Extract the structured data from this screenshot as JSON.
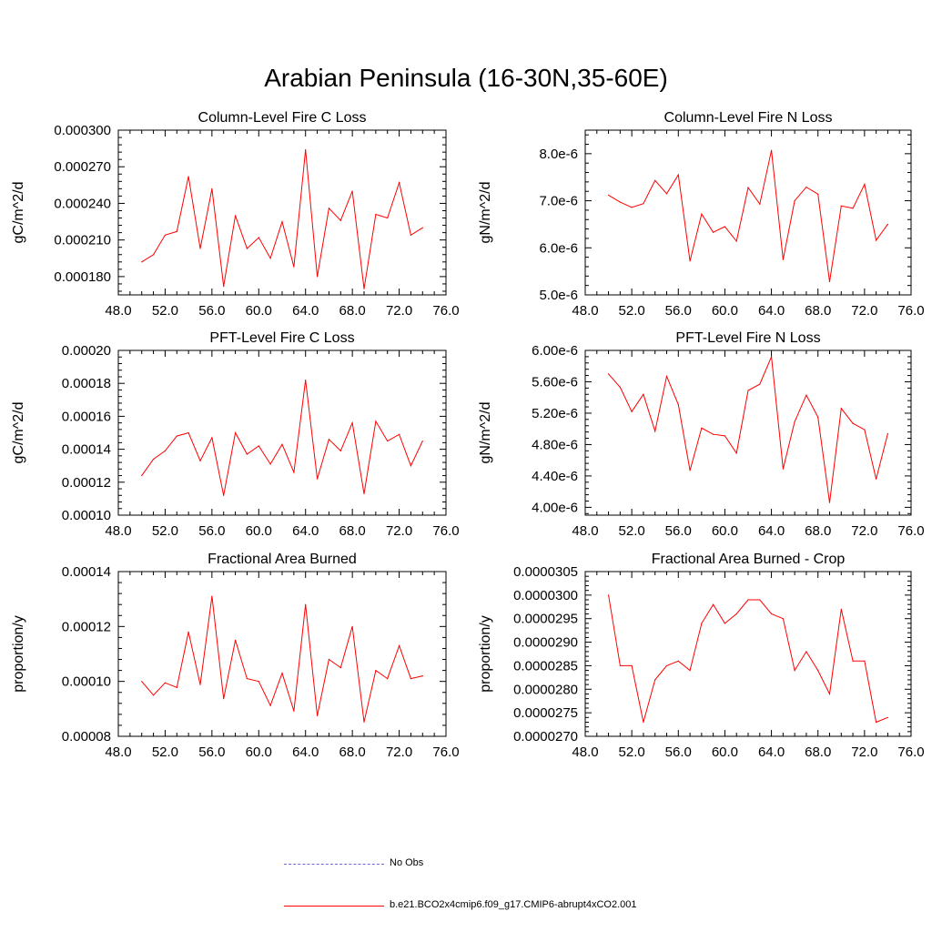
{
  "page": {
    "title": "Arabian Peninsula (16-30N,35-60E)"
  },
  "colors": {
    "model": "#ff0000",
    "obs": "#6a6ad8",
    "axis": "#000000"
  },
  "legend": {
    "obs_label": "No Obs",
    "model_label": "b.e21.BCO2x4cmip6.f09_g17.CMIP6-abrupt4xCO2.001"
  },
  "chart_data": [
    {
      "type": "line",
      "title": "Column-Level Fire C Loss",
      "ylabel": "gC/m^2/d",
      "xlabel": "",
      "xlim": [
        48,
        76
      ],
      "xticks": [
        48,
        52,
        56,
        60,
        64,
        68,
        72,
        76
      ],
      "xtick_labels": [
        "48.0",
        "52.0",
        "56.0",
        "60.0",
        "64.0",
        "68.0",
        "72.0",
        "76.0"
      ],
      "ylim": [
        0.000165,
        0.0003
      ],
      "yticks": [
        0.00018,
        0.00021,
        0.00024,
        0.00027,
        0.0003
      ],
      "ytick_labels": [
        "0.000180",
        "0.000210",
        "0.000240",
        "0.000270",
        "0.000300"
      ],
      "x": [
        50,
        51,
        52,
        53,
        54,
        55,
        56,
        57,
        58,
        59,
        60,
        61,
        62,
        63,
        64,
        65,
        66,
        67,
        68,
        69,
        70,
        71,
        72,
        73,
        74
      ],
      "series": [
        {
          "name": "b.e21.BCO2x4cmip6.f09_g17.CMIP6-abrupt4xCO2.001",
          "values": [
            0.000192,
            0.000198,
            0.000214,
            0.000217,
            0.000262,
            0.000203,
            0.000252,
            0.000172,
            0.00023,
            0.000203,
            0.000212,
            0.000195,
            0.000225,
            0.000188,
            0.000284,
            0.00018,
            0.000236,
            0.000226,
            0.00025,
            0.00017,
            0.000231,
            0.000228,
            0.000257,
            0.000214,
            0.00022
          ]
        }
      ]
    },
    {
      "type": "line",
      "title": "Column-Level Fire N Loss",
      "ylabel": "gN/m^2/d",
      "xlabel": "",
      "xlim": [
        48,
        76
      ],
      "xticks": [
        48,
        52,
        56,
        60,
        64,
        68,
        72,
        76
      ],
      "xtick_labels": [
        "48.0",
        "52.0",
        "56.0",
        "60.0",
        "64.0",
        "68.0",
        "72.0",
        "76.0"
      ],
      "ylim": [
        5e-06,
        8.5e-06
      ],
      "yticks": [
        5e-06,
        6e-06,
        7e-06,
        8e-06
      ],
      "ytick_labels": [
        "5.0e-6",
        "6.0e-6",
        "7.0e-6",
        "8.0e-6"
      ],
      "x": [
        50,
        51,
        52,
        53,
        54,
        55,
        56,
        57,
        58,
        59,
        60,
        61,
        62,
        63,
        64,
        65,
        66,
        67,
        68,
        69,
        70,
        71,
        72,
        73,
        74
      ],
      "series": [
        {
          "name": "b.e21.BCO2x4cmip6.f09_g17.CMIP6-abrupt4xCO2.001",
          "values": [
            7.12e-06,
            6.97e-06,
            6.86e-06,
            6.94e-06,
            7.43e-06,
            7.15e-06,
            7.55e-06,
            5.72e-06,
            6.72e-06,
            6.33e-06,
            6.45e-06,
            6.14e-06,
            7.28e-06,
            6.93e-06,
            8.07e-06,
            5.75e-06,
            7e-06,
            7.29e-06,
            7.14e-06,
            5.28e-06,
            6.89e-06,
            6.84e-06,
            7.35e-06,
            6.16e-06,
            6.5e-06
          ]
        }
      ]
    },
    {
      "type": "line",
      "title": "PFT-Level Fire C Loss",
      "ylabel": "gC/m^2/d",
      "xlabel": "",
      "xlim": [
        48,
        76
      ],
      "xticks": [
        48,
        52,
        56,
        60,
        64,
        68,
        72,
        76
      ],
      "xtick_labels": [
        "48.0",
        "52.0",
        "56.0",
        "60.0",
        "64.0",
        "68.0",
        "72.0",
        "76.0"
      ],
      "ylim": [
        0.0001,
        0.0002
      ],
      "yticks": [
        0.0001,
        0.00012,
        0.00014,
        0.00016,
        0.00018,
        0.0002
      ],
      "ytick_labels": [
        "0.00010",
        "0.00012",
        "0.00014",
        "0.00016",
        "0.00018",
        "0.00020"
      ],
      "x": [
        50,
        51,
        52,
        53,
        54,
        55,
        56,
        57,
        58,
        59,
        60,
        61,
        62,
        63,
        64,
        65,
        66,
        67,
        68,
        69,
        70,
        71,
        72,
        73,
        74
      ],
      "series": [
        {
          "name": "b.e21.BCO2x4cmip6.f09_g17.CMIP6-abrupt4xCO2.001",
          "values": [
            0.000124,
            0.000134,
            0.000139,
            0.000148,
            0.00015,
            0.000133,
            0.000147,
            0.000112,
            0.00015,
            0.000137,
            0.000142,
            0.000131,
            0.000143,
            0.000126,
            0.000182,
            0.000122,
            0.000146,
            0.000139,
            0.000156,
            0.000113,
            0.000157,
            0.000145,
            0.000149,
            0.00013,
            0.000145
          ]
        }
      ]
    },
    {
      "type": "line",
      "title": "PFT-Level Fire N Loss",
      "ylabel": "gN/m^2/d",
      "xlabel": "",
      "xlim": [
        48,
        76
      ],
      "xticks": [
        48,
        52,
        56,
        60,
        64,
        68,
        72,
        76
      ],
      "xtick_labels": [
        "48.0",
        "52.0",
        "56.0",
        "60.0",
        "64.0",
        "68.0",
        "72.0",
        "76.0"
      ],
      "ylim": [
        3.9e-06,
        6e-06
      ],
      "yticks": [
        4e-06,
        4.4e-06,
        4.8e-06,
        5.2e-06,
        5.6e-06,
        6e-06
      ],
      "ytick_labels": [
        "4.00e-6",
        "4.40e-6",
        "4.80e-6",
        "5.20e-6",
        "5.60e-6",
        "6.00e-6"
      ],
      "x": [
        50,
        51,
        52,
        53,
        54,
        55,
        56,
        57,
        58,
        59,
        60,
        61,
        62,
        63,
        64,
        65,
        66,
        67,
        68,
        69,
        70,
        71,
        72,
        73,
        74
      ],
      "series": [
        {
          "name": "b.e21.BCO2x4cmip6.f09_g17.CMIP6-abrupt4xCO2.001",
          "values": [
            5.7e-06,
            5.53e-06,
            5.22e-06,
            5.44e-06,
            4.97e-06,
            5.67e-06,
            5.31e-06,
            4.47e-06,
            5.01e-06,
            4.93e-06,
            4.91e-06,
            4.69e-06,
            5.49e-06,
            5.57e-06,
            5.92e-06,
            4.49e-06,
            5.09e-06,
            5.43e-06,
            5.15e-06,
            4.06e-06,
            5.26e-06,
            5.07e-06,
            4.99e-06,
            4.36e-06,
            4.94e-06
          ]
        }
      ]
    },
    {
      "type": "line",
      "title": "Fractional Area Burned",
      "ylabel": "proportion/y",
      "xlabel": "",
      "xlim": [
        48,
        76
      ],
      "xticks": [
        48,
        52,
        56,
        60,
        64,
        68,
        72,
        76
      ],
      "xtick_labels": [
        "48.0",
        "52.0",
        "56.0",
        "60.0",
        "64.0",
        "68.0",
        "72.0",
        "76.0"
      ],
      "ylim": [
        8e-05,
        0.00014
      ],
      "yticks": [
        8e-05,
        0.0001,
        0.00012,
        0.00014
      ],
      "ytick_labels": [
        "0.00008",
        "0.00010",
        "0.00012",
        "0.00014"
      ],
      "x": [
        50,
        51,
        52,
        53,
        54,
        55,
        56,
        57,
        58,
        59,
        60,
        61,
        62,
        63,
        64,
        65,
        66,
        67,
        68,
        69,
        70,
        71,
        72,
        73,
        74
      ],
      "series": [
        {
          "name": "b.e21.BCO2x4cmip6.f09_g17.CMIP6-abrupt4xCO2.001",
          "values": [
            0.0001,
            9.5e-05,
            9.95e-05,
            9.78e-05,
            0.000118,
            9.88e-05,
            0.000131,
            9.37e-05,
            0.000115,
            0.000101,
            0.0001,
            9.12e-05,
            0.000103,
            8.92e-05,
            0.000128,
            8.75e-05,
            0.000108,
            0.000105,
            0.00012,
            8.52e-05,
            0.000104,
            0.000101,
            0.000113,
            0.000101,
            0.000102
          ]
        }
      ]
    },
    {
      "type": "line",
      "title": "Fractional Area Burned - Crop",
      "ylabel": "proportion/y",
      "xlabel": "",
      "xlim": [
        48,
        76
      ],
      "xticks": [
        48,
        52,
        56,
        60,
        64,
        68,
        72,
        76
      ],
      "xtick_labels": [
        "48.0",
        "52.0",
        "56.0",
        "60.0",
        "64.0",
        "68.0",
        "72.0",
        "76.0"
      ],
      "ylim": [
        2.7e-05,
        3.05e-05
      ],
      "yticks": [
        2.7e-05,
        2.75e-05,
        2.8e-05,
        2.85e-05,
        2.9e-05,
        2.95e-05,
        3e-05,
        3.05e-05
      ],
      "ytick_labels": [
        "0.0000270",
        "0.0000275",
        "0.0000280",
        "0.0000285",
        "0.0000290",
        "0.0000295",
        "0.0000300",
        "0.0000305"
      ],
      "x": [
        50,
        51,
        52,
        53,
        54,
        55,
        56,
        57,
        58,
        59,
        60,
        61,
        62,
        63,
        64,
        65,
        66,
        67,
        68,
        69,
        70,
        71,
        72,
        73,
        74
      ],
      "series": [
        {
          "name": "b.e21.BCO2x4cmip6.f09_g17.CMIP6-abrupt4xCO2.001",
          "values": [
            3e-05,
            2.85e-05,
            2.85e-05,
            2.73e-05,
            2.82e-05,
            2.85e-05,
            2.86e-05,
            2.84e-05,
            2.94e-05,
            2.98e-05,
            2.94e-05,
            2.96e-05,
            2.99e-05,
            2.99e-05,
            2.96e-05,
            2.95e-05,
            2.84e-05,
            2.88e-05,
            2.84e-05,
            2.79e-05,
            2.97e-05,
            2.86e-05,
            2.86e-05,
            2.73e-05,
            2.74e-05
          ]
        }
      ]
    }
  ]
}
